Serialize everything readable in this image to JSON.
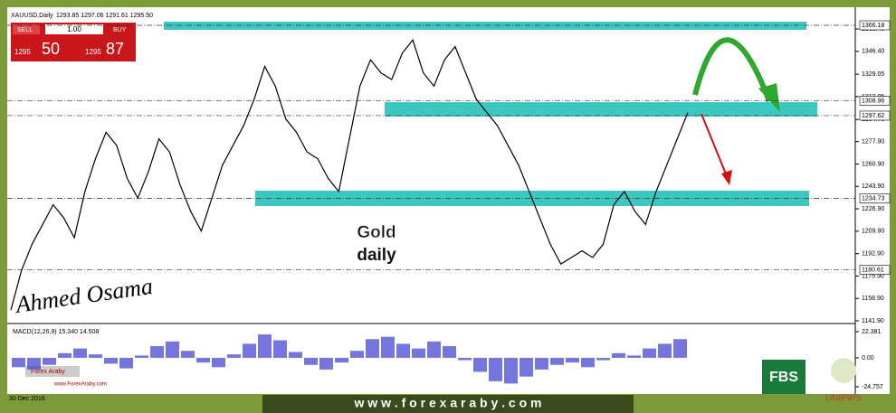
{
  "header": {
    "symbol": "XAUUSD,Daily",
    "ohlc": "1293.85 1297.06 1291.61 1295.50"
  },
  "trade_panel": {
    "sell": "SELL",
    "lot": "1.00",
    "buy": "BUY",
    "sell_big": "1295",
    "sell_pips": "50",
    "buy_big": "1295",
    "buy_pips": "87"
  },
  "chart_data": {
    "type": "line",
    "color": "#000000",
    "values": [
      1150,
      1180,
      1200,
      1215,
      1230,
      1220,
      1205,
      1240,
      1265,
      1285,
      1275,
      1250,
      1235,
      1255,
      1280,
      1270,
      1245,
      1225,
      1210,
      1235,
      1260,
      1275,
      1290,
      1310,
      1335,
      1320,
      1295,
      1285,
      1270,
      1265,
      1250,
      1240,
      1280,
      1320,
      1340,
      1330,
      1325,
      1345,
      1355,
      1330,
      1320,
      1340,
      1350,
      1330,
      1310,
      1300,
      1290,
      1275,
      1260,
      1240,
      1220,
      1200,
      1185,
      1190,
      1195,
      1190,
      1200,
      1230,
      1240,
      1225,
      1215,
      1240,
      1260,
      1280,
      1300
    ],
    "ylim": [
      1141.9,
      1366.18
    ],
    "yticks": [
      {
        "value": 1363.4,
        "label": "1363.40"
      },
      {
        "value": 1346.4,
        "label": "1346.40"
      },
      {
        "value": 1329.05,
        "label": "1329.05"
      },
      {
        "value": 1312.05,
        "label": "1312.05"
      },
      {
        "value": 1294.7,
        "label": "1294.70"
      },
      {
        "value": 1277.9,
        "label": "1277.90"
      },
      {
        "value": 1260.9,
        "label": "1260.90"
      },
      {
        "value": 1243.9,
        "label": "1243.90"
      },
      {
        "value": 1226.9,
        "label": "1226.90"
      },
      {
        "value": 1209.9,
        "label": "1209.90"
      },
      {
        "value": 1192.9,
        "label": "1192.90"
      },
      {
        "value": 1175.9,
        "label": "1175.90"
      },
      {
        "value": 1158.9,
        "label": "1158.90"
      },
      {
        "value": 1141.9,
        "label": "1141.90"
      }
    ],
    "levels": [
      {
        "value": 1366.18,
        "label": "1366.18"
      },
      {
        "value": 1308.96,
        "label": "1308.96"
      },
      {
        "value": 1297.62,
        "label": "1297.62"
      },
      {
        "value": 1234.73,
        "label": "1234.73"
      },
      {
        "value": 1180.61,
        "label": "1180.61"
      }
    ]
  },
  "macd": {
    "label": "MACD(12,26,9) 15.340 14.508",
    "color": "#3a3ad0",
    "values": [
      -8,
      -10,
      -6,
      4,
      8,
      3,
      -5,
      -9,
      2,
      10,
      14,
      6,
      -4,
      -8,
      3,
      12,
      20,
      15,
      5,
      -6,
      -10,
      -4,
      6,
      16,
      18,
      12,
      8,
      14,
      10,
      -2,
      -12,
      -20,
      -22,
      -16,
      -10,
      -6,
      -4,
      -8,
      -2,
      4,
      2,
      8,
      12,
      16
    ],
    "ylim": [
      -24.757,
      22.381
    ],
    "yticks": [
      {
        "value": 22.381,
        "label": "22.381"
      },
      {
        "value": 0,
        "label": "0.00"
      },
      {
        "value": -24.757,
        "label": "-24.757"
      }
    ]
  },
  "date": "30 Dec 2016",
  "title": {
    "line1": "Gold",
    "line2": "daily"
  },
  "signature": "Ahmed Osama",
  "footer": "w w w . f o r e x a r a b y . c o m",
  "logos": {
    "fbs": "FBS",
    "unipips": "UNIPIPS",
    "forexaraby": "Forex Araby",
    "site": "www.ForexAraby.com"
  }
}
